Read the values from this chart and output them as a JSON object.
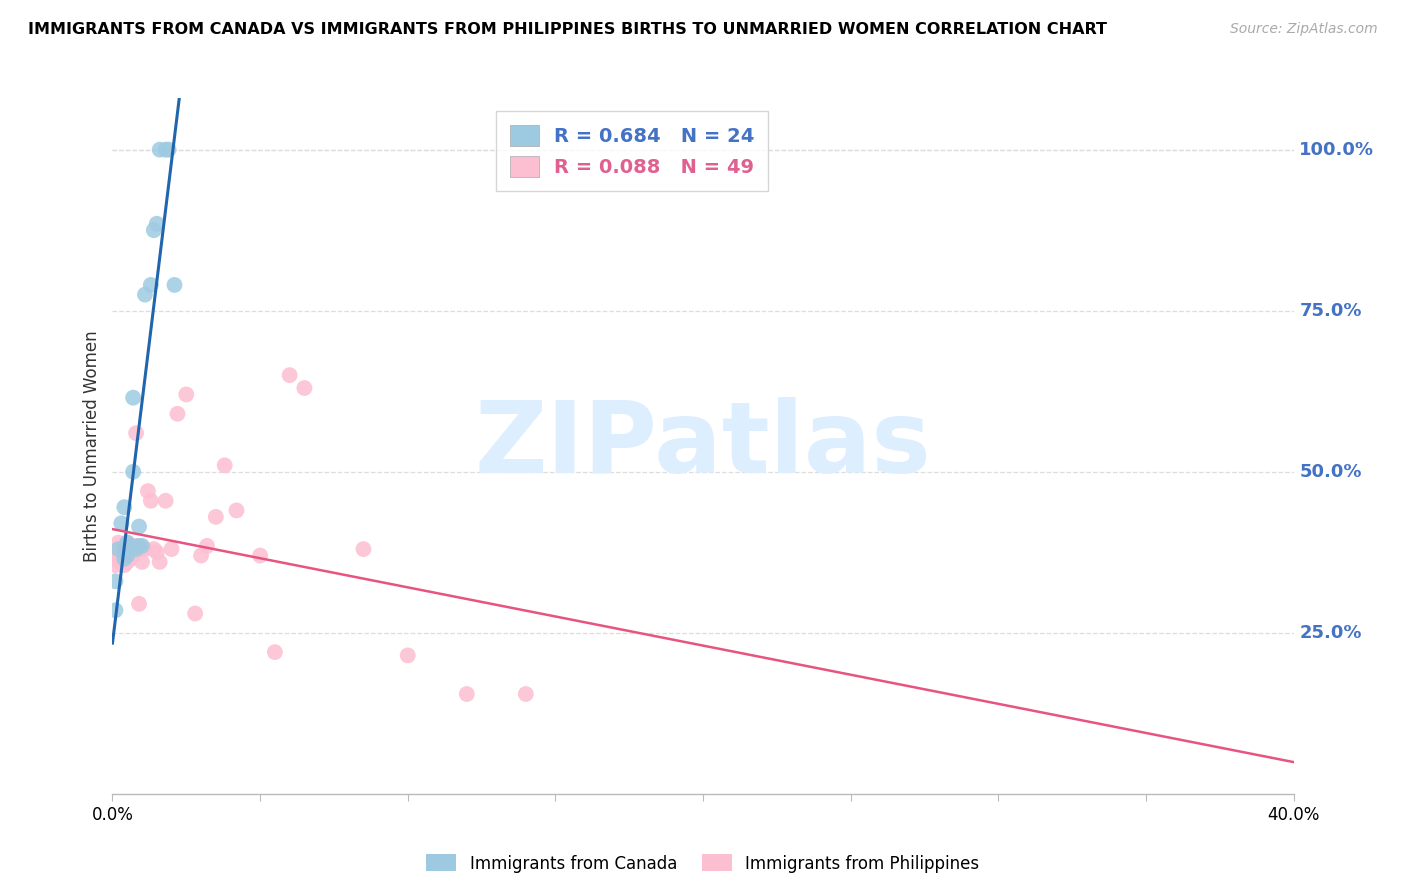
{
  "title": "IMMIGRANTS FROM CANADA VS IMMIGRANTS FROM PHILIPPINES BIRTHS TO UNMARRIED WOMEN CORRELATION CHART",
  "source": "Source: ZipAtlas.com",
  "ylabel": "Births to Unmarried Women",
  "right_ytick_labels": [
    "100.0%",
    "75.0%",
    "50.0%",
    "25.0%"
  ],
  "right_ytick_vals": [
    1.0,
    0.75,
    0.5,
    0.25
  ],
  "legend_canada_text": "R = 0.684   N = 24",
  "legend_phil_text": "R = 0.088   N = 49",
  "legend_canada_color": "#4472c4",
  "legend_phil_color": "#e06090",
  "canada_dot_color": "#9ecae1",
  "phil_dot_color": "#fcbfd2",
  "trend_canada_color": "#2166ac",
  "trend_phil_color": "#e75480",
  "watermark": "ZIPatlas",
  "watermark_color": "#ddeeff",
  "canada_x": [
    0.001,
    0.001,
    0.002,
    0.003,
    0.004,
    0.004,
    0.004,
    0.005,
    0.005,
    0.006,
    0.007,
    0.007,
    0.008,
    0.009,
    0.009,
    0.01,
    0.011,
    0.013,
    0.014,
    0.015,
    0.016,
    0.018,
    0.019,
    0.021
  ],
  "canada_y": [
    0.285,
    0.33,
    0.38,
    0.42,
    0.365,
    0.38,
    0.445,
    0.37,
    0.39,
    0.385,
    0.5,
    0.615,
    0.38,
    0.385,
    0.415,
    0.385,
    0.775,
    0.79,
    0.875,
    0.885,
    1.0,
    1.0,
    1.0,
    0.79
  ],
  "phil_x": [
    0.001,
    0.001,
    0.001,
    0.002,
    0.002,
    0.002,
    0.003,
    0.003,
    0.003,
    0.004,
    0.004,
    0.004,
    0.005,
    0.005,
    0.005,
    0.006,
    0.006,
    0.007,
    0.007,
    0.008,
    0.008,
    0.009,
    0.009,
    0.01,
    0.01,
    0.011,
    0.012,
    0.013,
    0.014,
    0.015,
    0.016,
    0.018,
    0.02,
    0.022,
    0.025,
    0.028,
    0.03,
    0.032,
    0.035,
    0.038,
    0.042,
    0.05,
    0.055,
    0.06,
    0.065,
    0.085,
    0.1,
    0.12,
    0.14
  ],
  "phil_y": [
    0.375,
    0.355,
    0.37,
    0.36,
    0.375,
    0.39,
    0.365,
    0.365,
    0.38,
    0.355,
    0.38,
    0.375,
    0.36,
    0.375,
    0.39,
    0.365,
    0.38,
    0.37,
    0.38,
    0.56,
    0.385,
    0.38,
    0.295,
    0.36,
    0.38,
    0.38,
    0.47,
    0.455,
    0.38,
    0.375,
    0.36,
    0.455,
    0.38,
    0.59,
    0.62,
    0.28,
    0.37,
    0.385,
    0.43,
    0.51,
    0.44,
    0.37,
    0.22,
    0.65,
    0.63,
    0.38,
    0.215,
    0.155,
    0.155
  ],
  "xmin": 0.0,
  "xmax": 0.4,
  "ymin": 0.0,
  "ymax": 1.08,
  "xtick_count": 9,
  "dot_size": 130,
  "background": "#ffffff",
  "grid_color": "#dddddd",
  "spine_color": "#bbbbbb"
}
